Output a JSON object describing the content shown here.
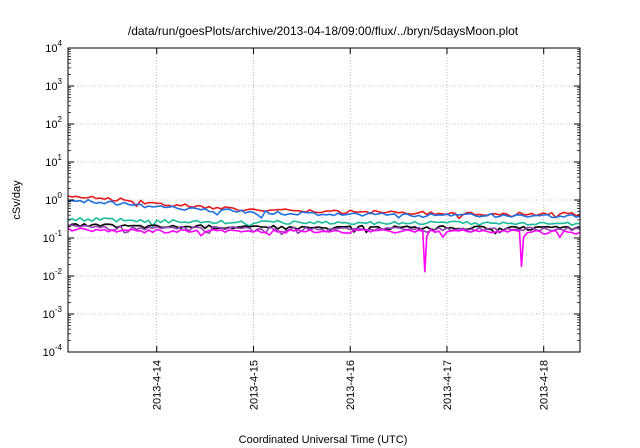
{
  "chart_data": {
    "type": "line",
    "title": "/data/run/goesPlots/archive/2013-04-18/09:00/flux/../bryn/5daysMoon.plot",
    "xlabel": "Coordinated Universal Time (UTC)",
    "ylabel": "cSv/day",
    "yscale": "log",
    "ylim": [
      0.0001,
      10000
    ],
    "xlim": [
      "2013-04-13T02:00",
      "2013-04-18T09:00"
    ],
    "grid": true,
    "x_ticks": [
      "2013-4-14",
      "2013-4-15",
      "2013-4-16",
      "2013-4-17",
      "2013-4-18"
    ],
    "y_ticks": [
      {
        "base": "10",
        "exp": "-4"
      },
      {
        "base": "10",
        "exp": "-3"
      },
      {
        "base": "10",
        "exp": "-2"
      },
      {
        "base": "10",
        "exp": "-1"
      },
      {
        "base": "10",
        "exp": "0"
      },
      {
        "base": "10",
        "exp": "1"
      },
      {
        "base": "10",
        "exp": "2"
      },
      {
        "base": "10",
        "exp": "3"
      },
      {
        "base": "10",
        "exp": "4"
      }
    ],
    "series": [
      {
        "color": "#e41a1c",
        "x": [
          "2013-04-13T02:00",
          "2013-04-13T12:00",
          "2013-04-14T00:00",
          "2013-04-14T12:00",
          "2013-04-15T00:00",
          "2013-04-15T12:00",
          "2013-04-16T00:00",
          "2013-04-16T12:00",
          "2013-04-17T00:00",
          "2013-04-17T12:00",
          "2013-04-18T00:00",
          "2013-04-18T09:00"
        ],
        "values": [
          1.3,
          1.1,
          0.8,
          0.65,
          0.55,
          0.5,
          0.48,
          0.47,
          0.45,
          0.44,
          0.43,
          0.42
        ]
      },
      {
        "color": "#1f6fe0",
        "x": [
          "2013-04-13T02:00",
          "2013-04-13T12:00",
          "2013-04-14T00:00",
          "2013-04-14T12:00",
          "2013-04-15T00:00",
          "2013-04-15T12:00",
          "2013-04-16T00:00",
          "2013-04-16T12:00",
          "2013-04-17T00:00",
          "2013-04-17T12:00",
          "2013-04-18T00:00",
          "2013-04-18T09:00"
        ],
        "values": [
          1.0,
          0.85,
          0.65,
          0.55,
          0.48,
          0.44,
          0.42,
          0.41,
          0.4,
          0.39,
          0.38,
          0.37
        ]
      },
      {
        "color": "#1abc9c",
        "x": [
          "2013-04-13T02:00",
          "2013-04-13T12:00",
          "2013-04-14T00:00",
          "2013-04-14T12:00",
          "2013-04-15T00:00",
          "2013-04-15T12:00",
          "2013-04-16T00:00",
          "2013-04-16T12:00",
          "2013-04-17T00:00",
          "2013-04-17T12:00",
          "2013-04-18T00:00",
          "2013-04-18T09:00"
        ],
        "values": [
          0.32,
          0.3,
          0.28,
          0.27,
          0.26,
          0.26,
          0.25,
          0.25,
          0.25,
          0.24,
          0.24,
          0.24
        ]
      },
      {
        "color": "#000000",
        "x": [
          "2013-04-13T02:00",
          "2013-04-13T12:00",
          "2013-04-14T00:00",
          "2013-04-14T12:00",
          "2013-04-15T00:00",
          "2013-04-15T12:00",
          "2013-04-16T00:00",
          "2013-04-16T12:00",
          "2013-04-17T00:00",
          "2013-04-17T12:00",
          "2013-04-18T00:00",
          "2013-04-18T09:00"
        ],
        "values": [
          0.22,
          0.21,
          0.2,
          0.2,
          0.19,
          0.19,
          0.19,
          0.19,
          0.19,
          0.18,
          0.18,
          0.18
        ]
      },
      {
        "color": "#8e44ad",
        "x": [
          "2013-04-13T02:00",
          "2013-04-13T12:00",
          "2013-04-14T00:00",
          "2013-04-14T12:00",
          "2013-04-15T00:00",
          "2013-04-15T12:00",
          "2013-04-16T00:00",
          "2013-04-16T12:00",
          "2013-04-17T00:00",
          "2013-04-17T12:00",
          "2013-04-18T00:00",
          "2013-04-18T09:00"
        ],
        "values": [
          0.2,
          0.19,
          0.18,
          0.18,
          0.18,
          0.17,
          0.17,
          0.17,
          0.17,
          0.17,
          0.17,
          0.17
        ]
      },
      {
        "color": "#ff00ff",
        "x": [
          "2013-04-13T02:00",
          "2013-04-13T12:00",
          "2013-04-14T00:00",
          "2013-04-14T12:00",
          "2013-04-15T00:00",
          "2013-04-15T12:00",
          "2013-04-16T00:00",
          "2013-04-16T12:00",
          "2013-04-16T18:00",
          "2013-04-16T18:30",
          "2013-04-16T19:00",
          "2013-04-17T00:00",
          "2013-04-17T12:00",
          "2013-04-17T18:00",
          "2013-04-17T18:30",
          "2013-04-17T19:00",
          "2013-04-18T00:00",
          "2013-04-18T09:00"
        ],
        "values": [
          0.17,
          0.16,
          0.15,
          0.15,
          0.15,
          0.15,
          0.15,
          0.15,
          0.15,
          0.013,
          0.15,
          0.15,
          0.15,
          0.15,
          0.018,
          0.15,
          0.14,
          0.14
        ]
      }
    ]
  }
}
